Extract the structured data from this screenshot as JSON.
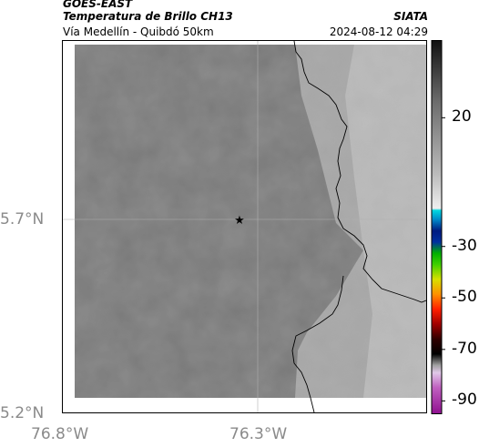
{
  "header": {
    "satellite": "GOES-EAST",
    "title": "Temperatura de Brillo CH13",
    "organization": "SIATA",
    "route": "Vía Medellín - Quibdó 50km",
    "datetime": "2024-08-12 04:29"
  },
  "map": {
    "lat_labels": [
      "5.7°N",
      "5.2°N"
    ],
    "lon_labels": [
      "76.8°W",
      "76.3°W"
    ],
    "marker": "star-marker"
  },
  "colorbar": {
    "tick_labels": [
      "20",
      "-30",
      "-50",
      "-70",
      "-90"
    ],
    "tick_values": [
      20,
      -30,
      -50,
      -70,
      -90
    ],
    "range": [
      -95,
      50
    ]
  },
  "colors": {
    "land_gray": "#7a7a7a",
    "coast": "#000000",
    "frame": "#000000"
  }
}
